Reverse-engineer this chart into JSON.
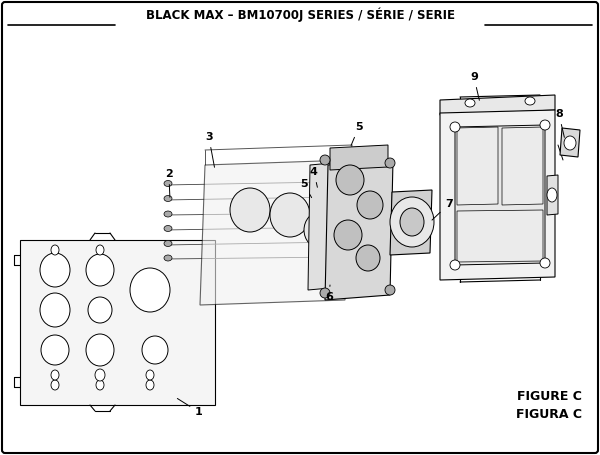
{
  "title": "BLACK MAX – BM10700J SERIES / SÉRIE / SERIE",
  "figure_label": "FIGURE C",
  "figura_label": "FIGURA C",
  "bg_color": "#ffffff",
  "title_fontsize": 8.5,
  "label_fontsize": 8,
  "figsize": [
    6.0,
    4.55
  ],
  "dpi": 100
}
